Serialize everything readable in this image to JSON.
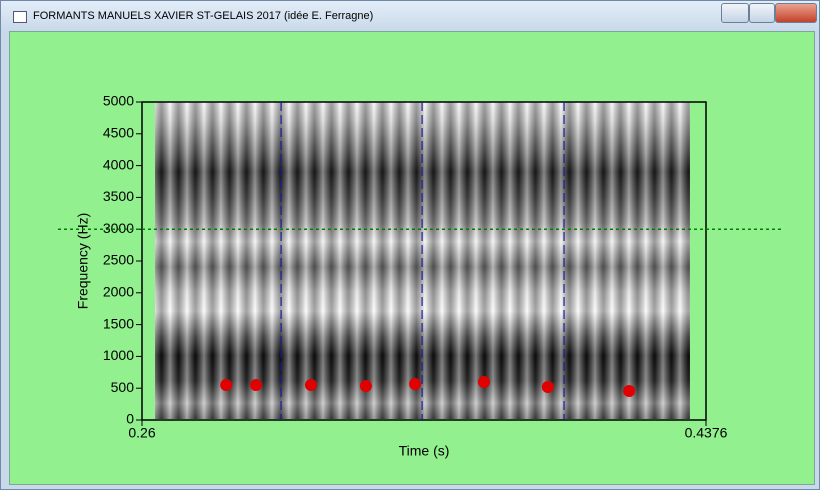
{
  "window": {
    "title": "FORMANTS MANUELS XAVIER ST-GELAIS 2017 (idée E. Ferragne)"
  },
  "chart_data": {
    "type": "scatter",
    "x_label": "Time (s)",
    "y_label": "Frequency (Hz)",
    "x": [
      0.2865,
      0.2959,
      0.3132,
      0.3305,
      0.346,
      0.3677,
      0.3878,
      0.4134
    ],
    "values": [
      550,
      550,
      550,
      535,
      566,
      597,
      519,
      456
    ],
    "color": "#e00000",
    "xlim": [
      0.26,
      0.4376
    ],
    "xticks": [
      0.26,
      0.4376
    ],
    "ylim": [
      0,
      5000
    ],
    "yticks": [
      0,
      500,
      1000,
      1500,
      2000,
      2500,
      3000,
      3500,
      4000,
      4500,
      5000
    ],
    "vlines": [
      0.3038,
      0.3482,
      0.3929
    ],
    "vline_color": "#1a1aa0",
    "hline": 3000,
    "hline_color": "#008000"
  }
}
